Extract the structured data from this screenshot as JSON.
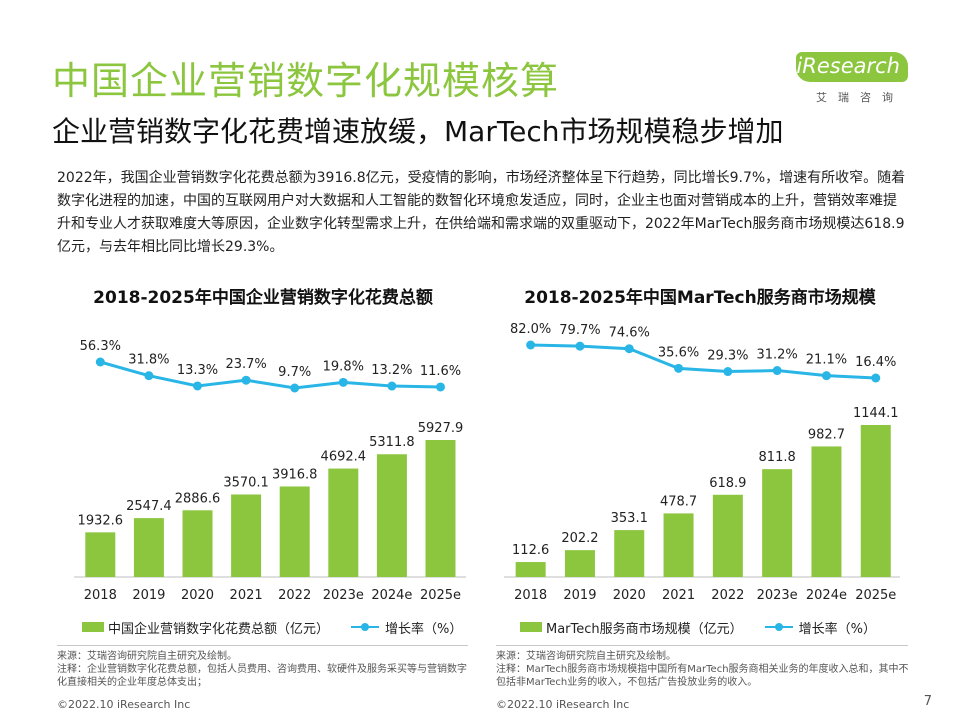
{
  "header": {
    "title": "中国企业营销数字化规模核算",
    "subtitle": "企业营销数字化花费增速放缓，MarTech市场规模稳步增加"
  },
  "logo": {
    "brand": "iResearch",
    "tagline": "艾瑞咨询"
  },
  "description": "2022年，我国企业营销数字化花费总额为3916.8亿元，受疫情的影响，市场经济整体呈下行趋势，同比增长9.7%，增速有所收窄。随着数字化进程的加速，中国的互联网用户对大数据和人工智能的数智化环境愈发适应，同时，企业主也面对营销成本的上升，营销效率难提升和专业人才获取难度大等原因，企业数字化转型需求上升，在供给端和需求端的双重驱动下，2022年MarTech服务商市场规模达618.9亿元，与去年相比同比增长29.3%。",
  "colors": {
    "title": "#8cc63f",
    "bar": "#8cc63f",
    "line": "#29b6e6"
  },
  "chart_data": [
    {
      "type": "bar",
      "title": "2018-2025年中国企业营销数字化花费总额",
      "categories": [
        "2018",
        "2019",
        "2020",
        "2021",
        "2022",
        "2023e",
        "2024e",
        "2025e"
      ],
      "series": [
        {
          "name": "中国企业营销数字化花费总额（亿元）",
          "type": "bar",
          "values": [
            1932.6,
            2547.4,
            2886.6,
            3570.1,
            3916.8,
            4692.4,
            5311.8,
            5927.9
          ]
        },
        {
          "name": "增长率（%）",
          "type": "line",
          "values": [
            56.3,
            31.8,
            13.3,
            23.7,
            9.7,
            19.8,
            13.2,
            11.6
          ]
        }
      ],
      "legend_position": "bottom"
    },
    {
      "type": "bar",
      "title": "2018-2025年中国MarTech服务商市场规模",
      "categories": [
        "2018",
        "2019",
        "2020",
        "2021",
        "2022",
        "2023e",
        "2024e",
        "2025e"
      ],
      "series": [
        {
          "name": "MarTech服务商市场规模（亿元）",
          "type": "bar",
          "values": [
            112.6,
            202.2,
            353.1,
            478.7,
            618.9,
            811.8,
            982.7,
            1144.1
          ]
        },
        {
          "name": "增长率（%）",
          "type": "line",
          "values": [
            82.0,
            79.7,
            74.6,
            35.6,
            29.3,
            31.2,
            21.1,
            16.4
          ]
        }
      ],
      "legend_position": "bottom"
    }
  ],
  "legend1": {
    "bar_label": "中国企业营销数字化花费总额（亿元）",
    "line_label": "增长率（%）"
  },
  "legend2": {
    "bar_label": "MarTech服务商市场规模（亿元）",
    "line_label": "增长率（%）"
  },
  "notes": {
    "left": "来源：艾瑞咨询研究院自主研究及绘制。\n注释：企业营销数字化花费总额，包括人员费用、咨询费用、软硬件及服务采买等与营销数字化直接相关的企业年度总体支出；",
    "right": "来源：艾瑞咨询研究院自主研究及绘制。\n注释：MarTech服务商市场规模指中国所有MarTech服务商相关业务的年度收入总和，其中不包括非MarTech业务的收入，不包括广告投放业务的收入。"
  },
  "footer": {
    "copyright": "©2022.10 iResearch Inc",
    "page_number": "7"
  }
}
